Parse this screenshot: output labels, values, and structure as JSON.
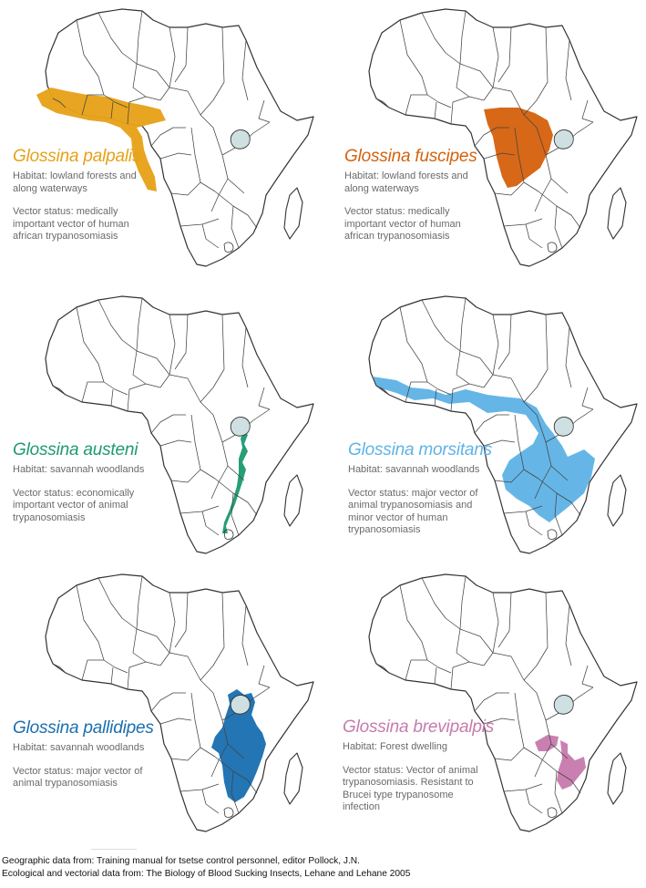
{
  "colors": {
    "outline": "#333333",
    "border": "#444444",
    "lake": "#cfe0e2"
  },
  "panels": [
    {
      "species": "Glossina palpalis",
      "color": "#e6a118",
      "lines": [
        "Habitat: lowland forests and",
        "along waterways",
        "",
        "Vector status: medically",
        "important vector of human",
        "african trypanosomiasis"
      ]
    },
    {
      "species": "Glossina fuscipes",
      "color": "#d4620e",
      "lines": [
        "Habitat: lowland forests and",
        "along waterways",
        "",
        "Vector status: medically",
        "important vector of human",
        "african trypanosomiasis"
      ]
    },
    {
      "species": "Glossina austeni",
      "color": "#1d9a73",
      "lines": [
        "Habitat: savannah woodlands",
        "",
        "Vector status: economically",
        "important vector of animal",
        "trypanosomiasis"
      ]
    },
    {
      "species": "Glossina morsitans",
      "color": "#5fb3e6",
      "lines": [
        "Habitat: savannah woodlands",
        "",
        "Vector status: major vector of",
        "animal trypanosomiasis and",
        "minor vector of human",
        "trypanosomiasis"
      ]
    },
    {
      "species": "Glossina pallidipes",
      "color": "#1a6fb0",
      "lines": [
        "Habitat: savannah woodlands",
        "",
        "Vector status: major vector of",
        "animal trypanosomiasis"
      ]
    },
    {
      "species": "Glossina brevipalpis",
      "color": "#c77bae",
      "lines": [
        "Habitat: Forest dwelling",
        "",
        "Vector status: Vector of animal",
        "trypanosomiasis. Resistant to",
        "Brucei type trypanosome",
        "infection"
      ]
    }
  ],
  "credits": {
    "line1": "Geographic data from: Training manual for tsetse control personnel, editor Pollock, J.N.",
    "line2": "Ecological and vectorial data from: The Biology of Blood Sucking Insects, Lehane and Lehane 2005"
  }
}
